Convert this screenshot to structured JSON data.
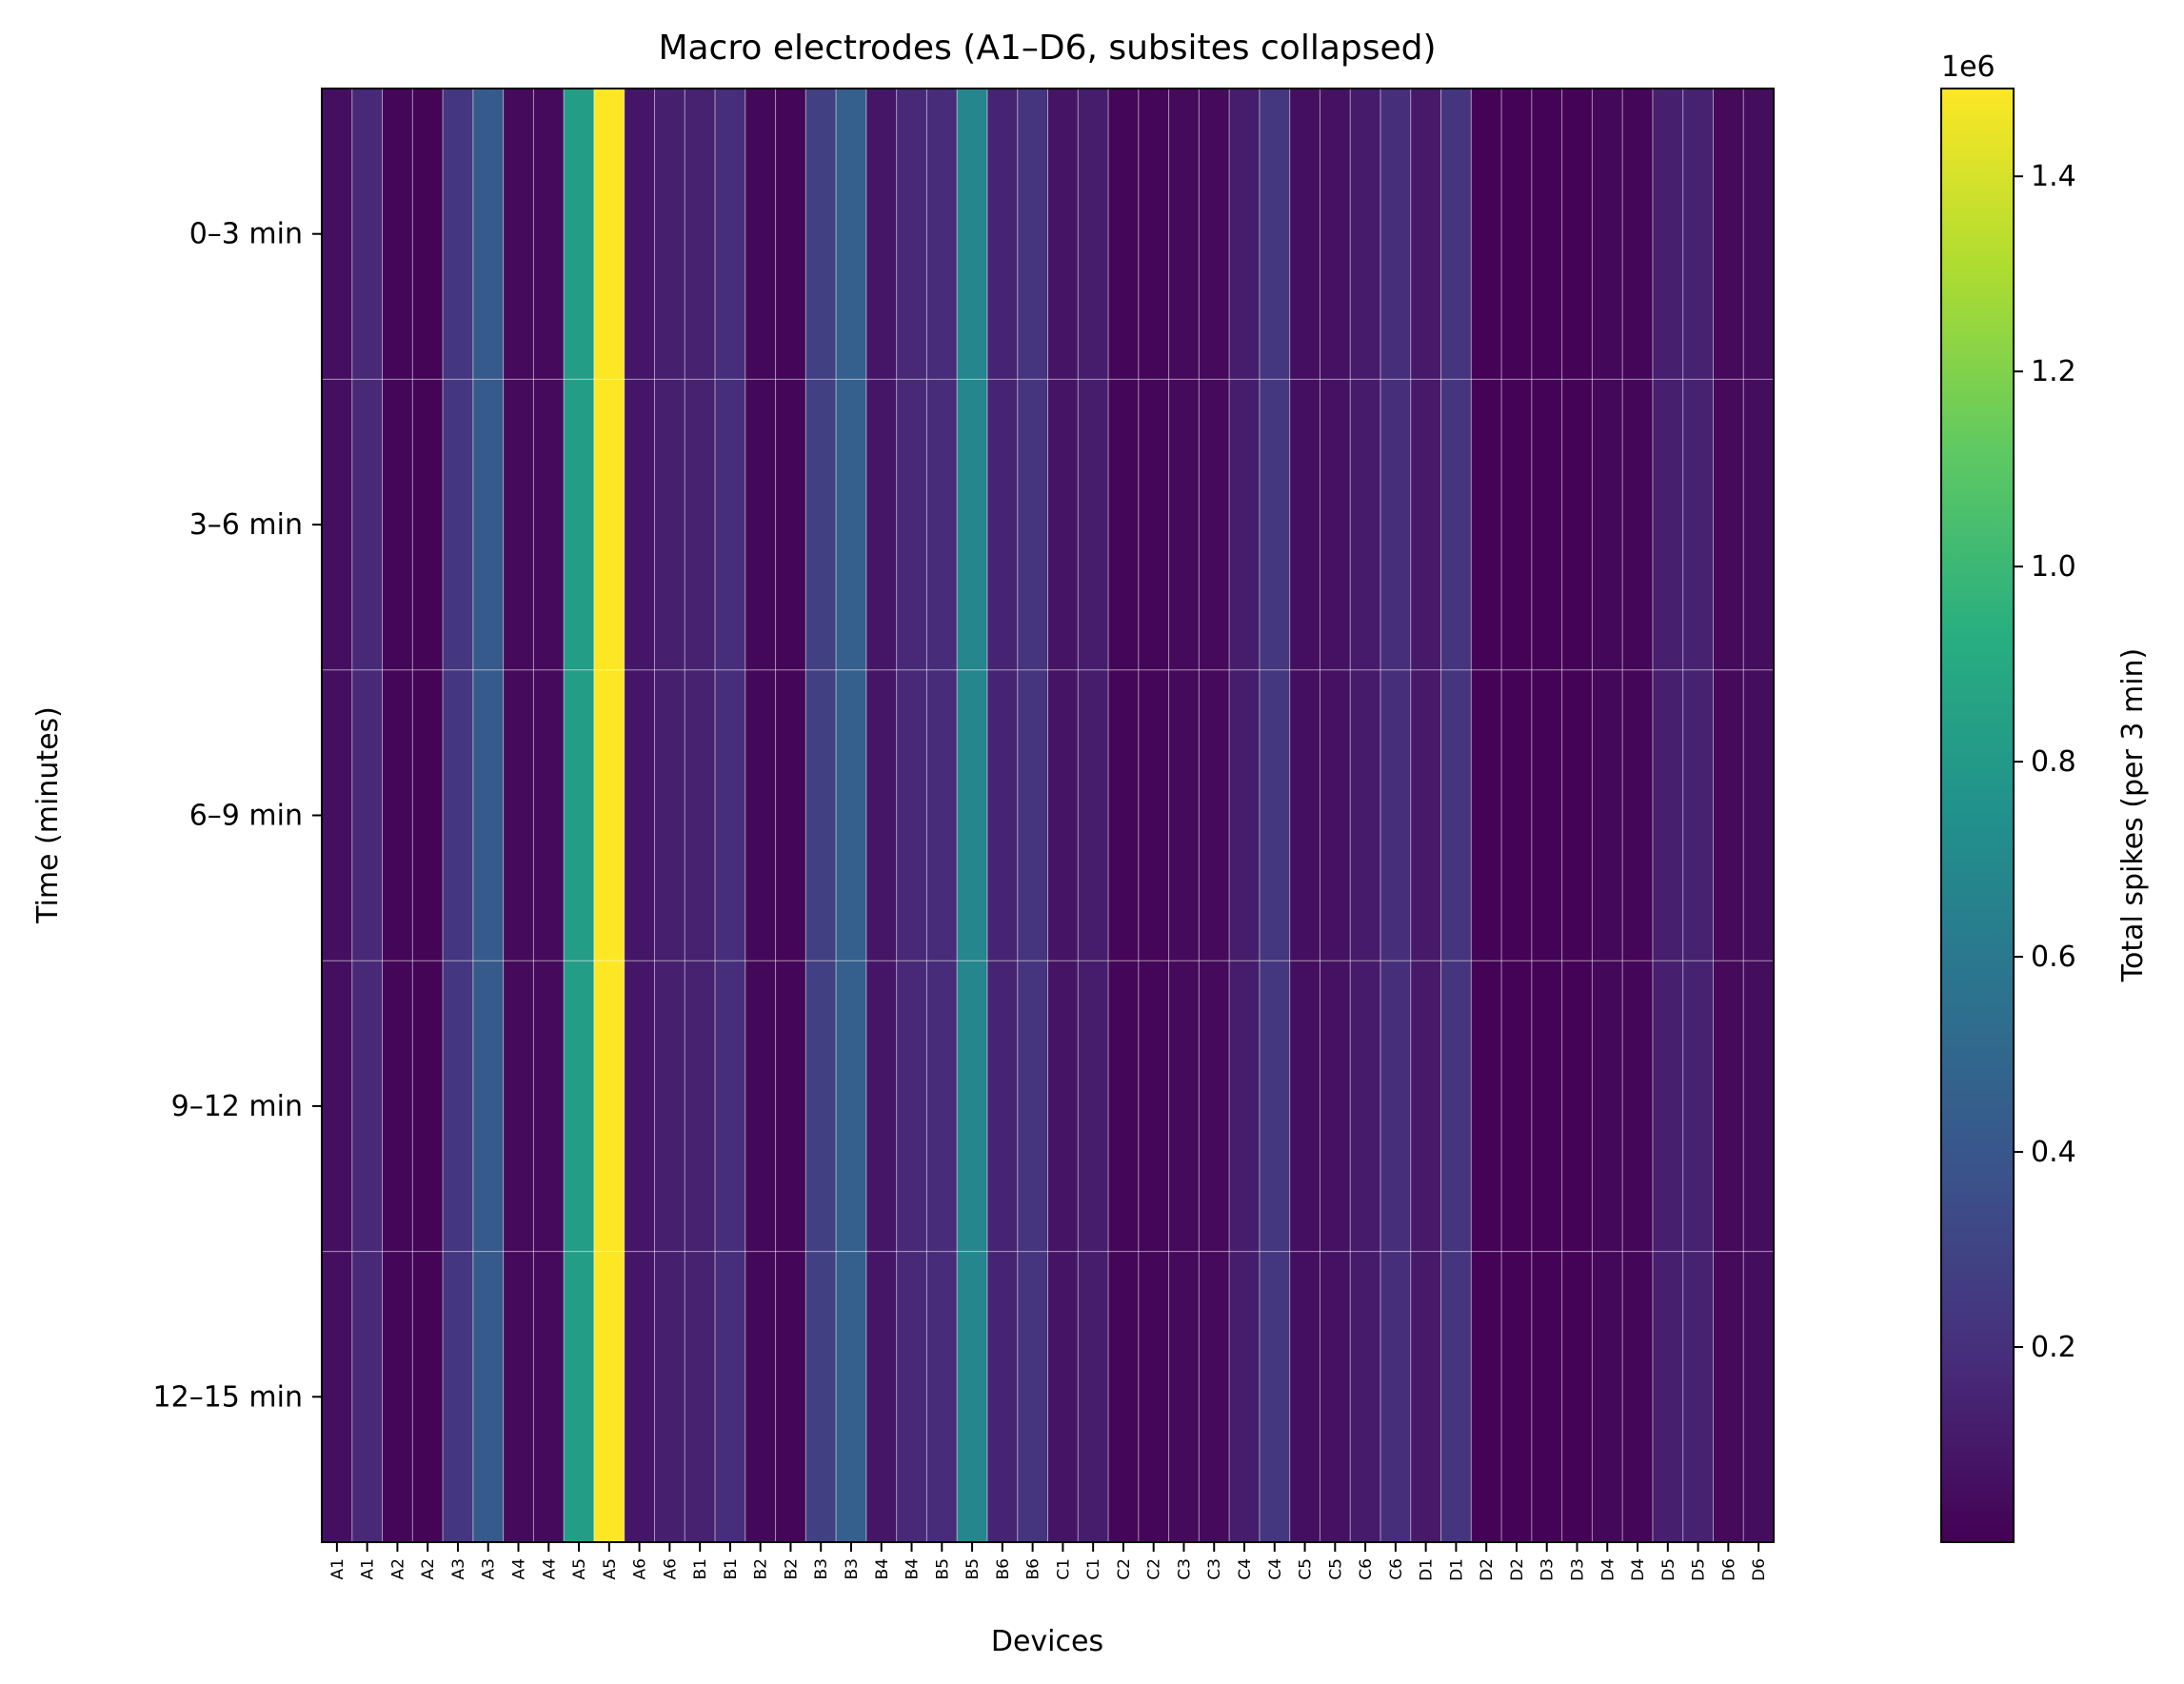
{
  "chart_data": {
    "type": "heatmap",
    "title": "Macro electrodes (A1–D6, subsites collapsed)",
    "xlabel": "Devices",
    "ylabel": "Time (minutes)",
    "x_categories": [
      "A1",
      "A1",
      "A2",
      "A2",
      "A3",
      "A3",
      "A4",
      "A4",
      "A5",
      "A5",
      "A6",
      "A6",
      "B1",
      "B1",
      "B2",
      "B2",
      "B3",
      "B3",
      "B4",
      "B4",
      "B5",
      "B5",
      "B6",
      "B6",
      "C1",
      "C1",
      "C2",
      "C2",
      "C3",
      "C3",
      "C4",
      "C4",
      "C5",
      "C5",
      "C6",
      "C6",
      "D1",
      "D1",
      "D2",
      "D2",
      "D3",
      "D3",
      "D4",
      "D4",
      "D5",
      "D5",
      "D6",
      "D6"
    ],
    "y_categories": [
      "0–3 min",
      "3–6 min",
      "6–9 min",
      "9–12 min",
      "12–15 min"
    ],
    "column_values": [
      60000,
      170000,
      20000,
      15000,
      230000,
      420000,
      40000,
      40000,
      820000,
      1490000,
      90000,
      130000,
      140000,
      190000,
      30000,
      20000,
      280000,
      450000,
      90000,
      170000,
      180000,
      680000,
      150000,
      220000,
      80000,
      120000,
      20000,
      20000,
      40000,
      40000,
      120000,
      230000,
      60000,
      70000,
      110000,
      190000,
      100000,
      220000,
      10000,
      10000,
      10000,
      10000,
      30000,
      20000,
      130000,
      140000,
      40000,
      50000
    ],
    "values_note_rows_identical": true,
    "grid": true,
    "colormap": "viridis",
    "vmin": 0,
    "vmax": 1490000,
    "colorbar": {
      "label": "Total spikes (per 3 min)",
      "offset_text": "1e6",
      "ticks": [
        0.2,
        0.4,
        0.6,
        0.8,
        1.0,
        1.2,
        1.4
      ],
      "tick_labels": [
        "0.2",
        "0.4",
        "0.6",
        "0.8",
        "1.0",
        "1.2",
        "1.4"
      ],
      "scale": 1000000
    }
  }
}
